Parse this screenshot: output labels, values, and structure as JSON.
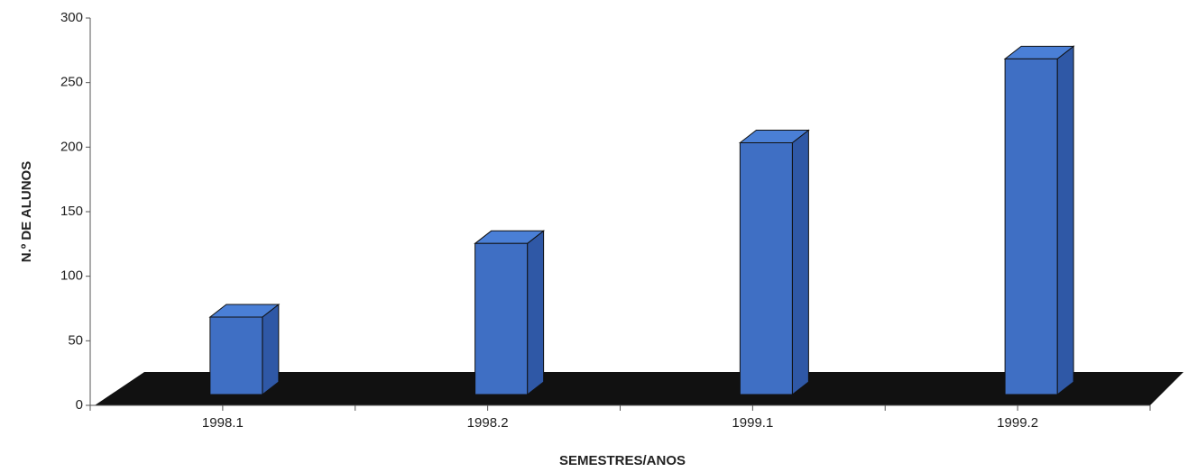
{
  "chart_data": {
    "type": "bar3d",
    "categories": [
      "1998.1",
      "1998.2",
      "1999.1",
      "1999.2"
    ],
    "values": [
      60,
      117,
      195,
      260
    ],
    "color": "#3f6fc4",
    "floor_color": "#111111",
    "xlabel": "SEMESTRES/ANOS",
    "ylabel": "N.º DE ALUNOS",
    "ylim": [
      0,
      300
    ],
    "yticks": [
      0,
      50,
      100,
      150,
      200,
      250,
      300
    ]
  }
}
